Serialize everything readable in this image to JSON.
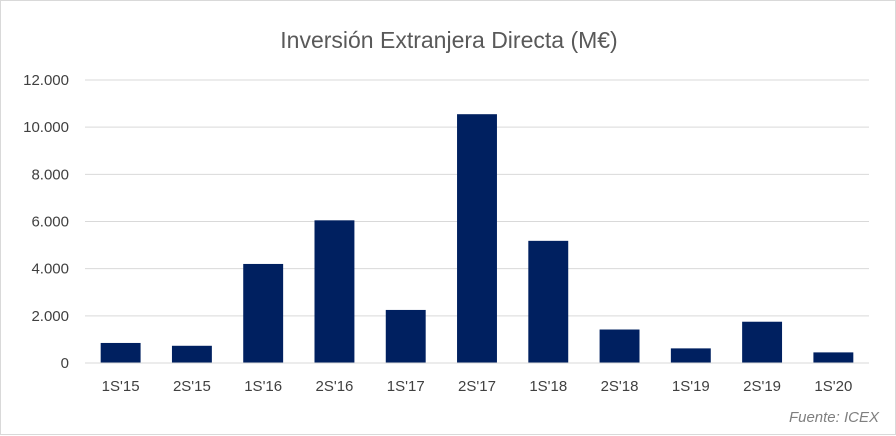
{
  "chart_data": {
    "type": "bar",
    "title": "Inversión Extranjera Directa (M€)",
    "xlabel": "",
    "ylabel": "",
    "categories": [
      "1S'15",
      "2S'15",
      "1S'16",
      "2S'16",
      "1S'17",
      "2S'17",
      "1S'18",
      "2S'18",
      "1S'19",
      "2S'19",
      "1S'20"
    ],
    "values": [
      850,
      730,
      4200,
      6050,
      2250,
      10550,
      5180,
      1420,
      620,
      1750,
      450
    ],
    "ylim": [
      0,
      12000
    ],
    "yticks": [
      0,
      2000,
      4000,
      6000,
      8000,
      10000,
      12000
    ],
    "ytick_labels": [
      "0",
      "2.000",
      "4.000",
      "6.000",
      "8.000",
      "10.000",
      "12.000"
    ],
    "grid": true,
    "legend": "none",
    "bar_color": "#002060",
    "source": "Fuente: ICEX"
  }
}
